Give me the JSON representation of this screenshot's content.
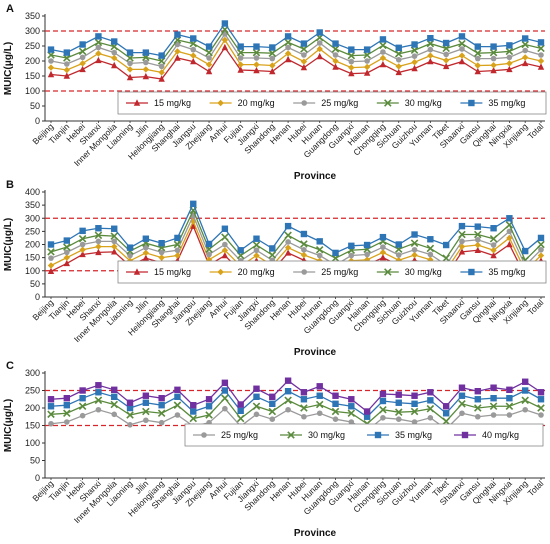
{
  "chart_data": [
    {
      "panel": "A",
      "type": "line",
      "xlabel": "Province",
      "ylabel": "MUIC(μg/L)",
      "ylim": [
        0,
        350
      ],
      "yticks": [
        0,
        50,
        100,
        150,
        200,
        250,
        300,
        350
      ],
      "reference_lines": [
        100,
        300
      ],
      "legend_placement": "bottom-right",
      "categories": [
        "Beijing",
        "Tianjin",
        "Hebei",
        "Shanxi",
        "Inner Mongolia",
        "Liaoning",
        "Jilin",
        "Heilongjiang",
        "Shanghai",
        "Jiangsu",
        "Zhejiang",
        "Anhui",
        "Fujian",
        "Jiangxi",
        "Shandong",
        "Henan",
        "Hubei",
        "Hunan",
        "Guangdong",
        "Guangxi",
        "Hainan",
        "Chongqing",
        "Sichuan",
        "Guizhou",
        "Yunnan",
        "Tibet",
        "Shaanxi",
        "Gansu",
        "Qinghai",
        "Ningxia",
        "Xinjiang",
        "Total"
      ],
      "series": [
        {
          "name": "15 mg/kg",
          "color": "#c0282d",
          "marker": "triangle",
          "values": [
            155,
            150,
            172,
            202,
            185,
            145,
            148,
            140,
            210,
            198,
            165,
            245,
            170,
            168,
            165,
            205,
            178,
            215,
            180,
            158,
            160,
            188,
            162,
            175,
            198,
            182,
            198,
            165,
            168,
            172,
            192,
            180
          ]
        },
        {
          "name": "20 mg/kg",
          "color": "#d9a21b",
          "marker": "diamond",
          "values": [
            178,
            170,
            192,
            225,
            210,
            172,
            172,
            162,
            232,
            218,
            188,
            270,
            188,
            188,
            185,
            225,
            198,
            240,
            200,
            178,
            180,
            210,
            182,
            196,
            218,
            202,
            218,
            185,
            186,
            192,
            212,
            200
          ]
        },
        {
          "name": "25 mg/kg",
          "color": "#9a9a9a",
          "marker": "circle",
          "values": [
            200,
            190,
            212,
            245,
            228,
            192,
            195,
            182,
            255,
            238,
            210,
            290,
            210,
            210,
            208,
            245,
            220,
            260,
            220,
            198,
            200,
            230,
            204,
            216,
            238,
            222,
            240,
            208,
            208,
            212,
            235,
            220
          ]
        },
        {
          "name": "30 mg/kg",
          "color": "#5a8a3c",
          "marker": "x",
          "values": [
            220,
            210,
            232,
            262,
            248,
            210,
            212,
            200,
            270,
            258,
            228,
            305,
            228,
            228,
            226,
            262,
            240,
            278,
            240,
            218,
            220,
            252,
            224,
            236,
            258,
            242,
            258,
            226,
            228,
            232,
            255,
            242
          ]
        },
        {
          "name": "35 mg/kg",
          "color": "#2e75b6",
          "marker": "square",
          "values": [
            238,
            228,
            255,
            282,
            265,
            228,
            228,
            218,
            288,
            275,
            248,
            325,
            248,
            248,
            245,
            282,
            258,
            295,
            258,
            238,
            238,
            272,
            244,
            255,
            276,
            260,
            282,
            248,
            248,
            252,
            275,
            262
          ]
        }
      ]
    },
    {
      "panel": "B",
      "type": "line",
      "xlabel": "Province",
      "ylabel": "MUIC(μg/L)",
      "ylim": [
        0,
        400
      ],
      "yticks": [
        0,
        50,
        100,
        150,
        200,
        250,
        300,
        350,
        400
      ],
      "reference_lines": [
        100,
        300
      ],
      "legend_placement": "bottom-right",
      "categories": [
        "Beijing",
        "Tianjin",
        "Hebei",
        "Shanxi",
        "Inner Mongolia",
        "Liaoning",
        "Jilin",
        "Heilongjiang",
        "Shanghai",
        "Jiangsu",
        "Zhejiang",
        "Anhui",
        "Fujian",
        "Jiangxi",
        "Shandong",
        "Henan",
        "Hubei",
        "Hunan",
        "Guangdong",
        "Guangxi",
        "Hainan",
        "Chongqing",
        "Sichuan",
        "Guizhou",
        "Yunnan",
        "Tibet",
        "Shaanxi",
        "Gansu",
        "Qinghai",
        "Ningxia",
        "Xinjiang",
        "Total"
      ],
      "series": [
        {
          "name": "15 mg/kg",
          "color": "#c0282d",
          "marker": "triangle",
          "values": [
            98,
            128,
            162,
            170,
            172,
            118,
            148,
            130,
            138,
            270,
            122,
            158,
            98,
            138,
            100,
            168,
            140,
            118,
            82,
            118,
            122,
            150,
            120,
            140,
            122,
            82,
            172,
            178,
            158,
            200,
            80,
            138
          ]
        },
        {
          "name": "20 mg/kg",
          "color": "#d9a21b",
          "marker": "diamond",
          "values": [
            120,
            150,
            180,
            192,
            192,
            138,
            168,
            150,
            158,
            288,
            142,
            178,
            118,
            158,
            120,
            188,
            160,
            138,
            102,
            138,
            142,
            170,
            140,
            160,
            142,
            102,
            192,
            198,
            178,
            225,
            100,
            158
          ]
        },
        {
          "name": "25 mg/kg",
          "color": "#9a9a9a",
          "marker": "circle",
          "values": [
            148,
            170,
            200,
            212,
            212,
            158,
            188,
            170,
            178,
            310,
            162,
            200,
            138,
            178,
            140,
            210,
            180,
            158,
            122,
            158,
            162,
            190,
            160,
            180,
            162,
            122,
            212,
            218,
            198,
            250,
            120,
            180
          ]
        },
        {
          "name": "30 mg/kg",
          "color": "#5a8a3c",
          "marker": "x",
          "values": [
            172,
            190,
            222,
            235,
            232,
            175,
            205,
            188,
            200,
            330,
            182,
            228,
            158,
            198,
            160,
            235,
            202,
            180,
            148,
            178,
            182,
            212,
            182,
            205,
            185,
            148,
            238,
            238,
            222,
            275,
            140,
            200
          ]
        },
        {
          "name": "35 mg/kg",
          "color": "#2e75b6",
          "marker": "square",
          "values": [
            200,
            215,
            252,
            262,
            260,
            188,
            222,
            205,
            225,
            355,
            202,
            260,
            178,
            222,
            185,
            270,
            240,
            212,
            168,
            195,
            198,
            228,
            200,
            238,
            220,
            198,
            270,
            268,
            262,
            300,
            175,
            225
          ]
        }
      ]
    },
    {
      "panel": "C",
      "type": "line",
      "xlabel": "Province",
      "ylabel": "MUIC(μg/L)",
      "ylim": [
        0,
        300
      ],
      "yticks": [
        0,
        50,
        100,
        150,
        200,
        250,
        300
      ],
      "reference_lines": [
        150,
        250
      ],
      "legend_placement": "bottom-right",
      "categories": [
        "Beijing",
        "Tianjin",
        "Hebei",
        "Shanxi",
        "Inner Mongolia",
        "Liaoning",
        "Jilin",
        "Heilongjiang",
        "Shanghai",
        "Jiangsu",
        "Zhejiang",
        "Anhui",
        "Fujian",
        "Jiangxi",
        "Shandong",
        "Henan",
        "Hubei",
        "Hunan",
        "Guangdong",
        "Guangxi",
        "Hainan",
        "Chongqing",
        "Sichuan",
        "Guizhou",
        "Yunnan",
        "Tibet",
        "Shaanxi",
        "Gansu",
        "Qinghai",
        "Ningxia",
        "Xinjiang",
        "Total"
      ],
      "series": [
        {
          "name": "25 mg/kg",
          "color": "#9a9a9a",
          "marker": "circle",
          "values": [
            155,
            160,
            178,
            195,
            182,
            152,
            165,
            158,
            180,
            148,
            158,
            198,
            148,
            182,
            168,
            195,
            175,
            185,
            168,
            160,
            135,
            172,
            168,
            160,
            172,
            140,
            185,
            175,
            180,
            180,
            195,
            180
          ]
        },
        {
          "name": "30 mg/kg",
          "color": "#5a8a3c",
          "marker": "x",
          "values": [
            182,
            185,
            205,
            222,
            210,
            180,
            190,
            185,
            208,
            170,
            180,
            228,
            170,
            205,
            190,
            222,
            200,
            210,
            190,
            185,
            155,
            195,
            188,
            190,
            198,
            162,
            212,
            200,
            205,
            205,
            222,
            200
          ]
        },
        {
          "name": "35 mg/kg",
          "color": "#2e75b6",
          "marker": "square",
          "values": [
            205,
            208,
            228,
            245,
            232,
            200,
            215,
            208,
            232,
            190,
            205,
            250,
            192,
            232,
            212,
            248,
            225,
            235,
            212,
            205,
            175,
            220,
            215,
            212,
            222,
            185,
            235,
            225,
            228,
            228,
            250,
            225
          ]
        },
        {
          "name": "40 mg/kg",
          "color": "#7030a0",
          "marker": "square",
          "values": [
            225,
            228,
            250,
            265,
            252,
            215,
            235,
            228,
            252,
            208,
            225,
            272,
            210,
            255,
            232,
            278,
            245,
            262,
            235,
            225,
            190,
            240,
            238,
            235,
            245,
            205,
            258,
            248,
            258,
            252,
            275,
            245
          ]
        }
      ]
    }
  ]
}
